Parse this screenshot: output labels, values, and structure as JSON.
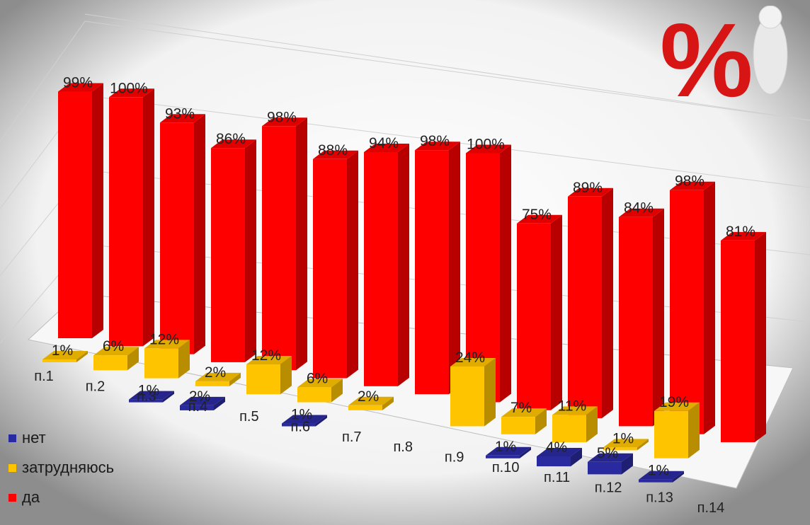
{
  "chart_data": {
    "type": "bar",
    "categories": [
      "п.1",
      "п.2",
      "п.3",
      "п.4",
      "п.5",
      "п.6",
      "п.7",
      "п.8",
      "п.9",
      "п.10",
      "п.11",
      "п.12",
      "п.13",
      "п.14"
    ],
    "series": [
      {
        "name": "нет",
        "color": "#2a2aa0",
        "values": [
          null,
          null,
          1,
          2,
          null,
          1,
          null,
          null,
          null,
          1,
          4,
          5,
          1,
          null
        ],
        "labels": [
          "",
          "",
          "1%",
          "2%",
          "",
          "1%",
          "",
          "",
          "",
          "1%",
          "4%",
          "5%",
          "1%",
          ""
        ]
      },
      {
        "name": "затрудняюсь",
        "color": "#ffc400",
        "values": [
          1,
          6,
          12,
          2,
          12,
          6,
          2,
          null,
          24,
          7,
          11,
          1,
          19,
          null
        ],
        "labels": [
          "1%",
          "6%",
          "12%",
          "2%",
          "12%",
          "6%",
          "2%",
          "",
          "24%",
          "7%",
          "11%",
          "1%",
          "19%",
          ""
        ]
      },
      {
        "name": "да",
        "color": "#ff0000",
        "values": [
          99,
          100,
          93,
          86,
          98,
          88,
          94,
          98,
          100,
          75,
          89,
          84,
          98,
          81
        ],
        "labels": [
          "99%",
          "100%",
          "93%",
          "86%",
          "98%",
          "88%",
          "94%",
          "98%",
          "100%",
          "75%",
          "89%",
          "84%",
          "98%",
          "81%"
        ]
      }
    ],
    "ylim": [
      0,
      100
    ],
    "legend": "bottom-left",
    "grid": true,
    "logo_text": "%"
  }
}
